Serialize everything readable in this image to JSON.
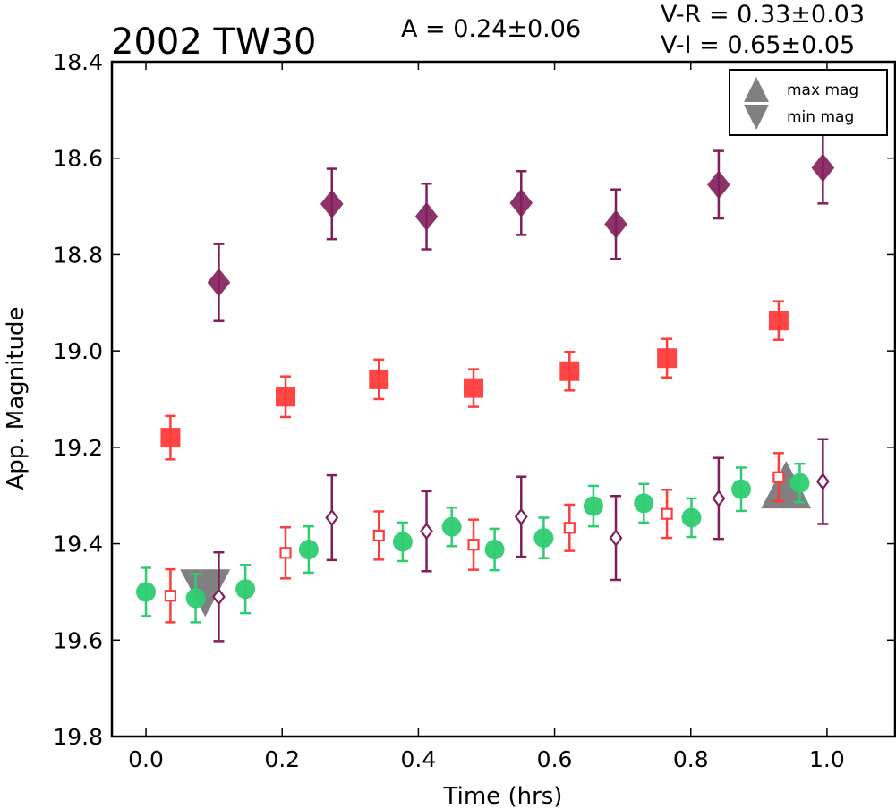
{
  "chart_data": {
    "type": "scatter",
    "title": "2002 TW30",
    "annotations": {
      "amplitude": "A  = 0.24±0.06",
      "v_r": "V-R = 0.33±0.03",
      "v_i": "V-I  = 0.65±0.05"
    },
    "xlabel": "Time (hrs)",
    "ylabel": "App. Magnitude",
    "xlim": [
      -0.05,
      1.1
    ],
    "ylim": [
      19.8,
      18.4
    ],
    "y_inverted": true,
    "xticks": [
      "0.0",
      "0.2",
      "0.4",
      "0.6",
      "0.8",
      "1.0"
    ],
    "yticks": [
      "18.4",
      "18.6",
      "18.8",
      "19.0",
      "19.2",
      "19.4",
      "19.6",
      "19.8"
    ],
    "legend": {
      "placement": "top-right",
      "entries": [
        {
          "label": "max mag",
          "marker": "triangle-up",
          "color": "#808080"
        },
        {
          "label": "min mag",
          "marker": "triangle-down",
          "color": "#808080"
        }
      ]
    },
    "series": [
      {
        "style": "filled-diamond",
        "color": "#7f1e5a",
        "points": [
          {
            "x": 0.107,
            "y": 18.858,
            "err": 0.08
          },
          {
            "x": 0.273,
            "y": 18.695,
            "err": 0.073
          },
          {
            "x": 0.412,
            "y": 18.721,
            "err": 0.068
          },
          {
            "x": 0.551,
            "y": 18.693,
            "err": 0.066
          },
          {
            "x": 0.69,
            "y": 18.737,
            "err": 0.072
          },
          {
            "x": 0.841,
            "y": 18.655,
            "err": 0.07
          },
          {
            "x": 0.994,
            "y": 18.62,
            "err": 0.074
          }
        ]
      },
      {
        "style": "filled-square",
        "color": "#ff3c3c",
        "points": [
          {
            "x": 0.036,
            "y": 19.18,
            "err": 0.045
          },
          {
            "x": 0.205,
            "y": 19.095,
            "err": 0.042
          },
          {
            "x": 0.342,
            "y": 19.059,
            "err": 0.041
          },
          {
            "x": 0.481,
            "y": 19.077,
            "err": 0.039
          },
          {
            "x": 0.622,
            "y": 19.042,
            "err": 0.04
          },
          {
            "x": 0.765,
            "y": 19.015,
            "err": 0.04
          },
          {
            "x": 0.929,
            "y": 18.937,
            "err": 0.04
          }
        ]
      },
      {
        "style": "filled-circle",
        "color": "#2ecc71",
        "points": [
          {
            "x": 0.0,
            "y": 19.5,
            "err": 0.05
          },
          {
            "x": 0.073,
            "y": 19.513,
            "err": 0.05
          },
          {
            "x": 0.146,
            "y": 19.494,
            "err": 0.05
          },
          {
            "x": 0.239,
            "y": 19.412,
            "err": 0.048
          },
          {
            "x": 0.377,
            "y": 19.396,
            "err": 0.04
          },
          {
            "x": 0.449,
            "y": 19.365,
            "err": 0.04
          },
          {
            "x": 0.512,
            "y": 19.412,
            "err": 0.043
          },
          {
            "x": 0.584,
            "y": 19.388,
            "err": 0.042
          },
          {
            "x": 0.657,
            "y": 19.322,
            "err": 0.042
          },
          {
            "x": 0.731,
            "y": 19.316,
            "err": 0.04
          },
          {
            "x": 0.801,
            "y": 19.346,
            "err": 0.04
          },
          {
            "x": 0.874,
            "y": 19.287,
            "err": 0.045
          },
          {
            "x": 0.96,
            "y": 19.274,
            "err": 0.04
          }
        ]
      },
      {
        "style": "open-square",
        "color": "#ff3c3c",
        "points": [
          {
            "x": 0.036,
            "y": 19.508,
            "err": 0.055
          },
          {
            "x": 0.205,
            "y": 19.419,
            "err": 0.053
          },
          {
            "x": 0.342,
            "y": 19.383,
            "err": 0.05
          },
          {
            "x": 0.481,
            "y": 19.402,
            "err": 0.052
          },
          {
            "x": 0.622,
            "y": 19.367,
            "err": 0.048
          },
          {
            "x": 0.765,
            "y": 19.338,
            "err": 0.05
          },
          {
            "x": 0.929,
            "y": 19.262,
            "err": 0.05
          }
        ]
      },
      {
        "style": "open-diamond",
        "color": "#7f1e5a",
        "points": [
          {
            "x": 0.107,
            "y": 19.51,
            "err": 0.092
          },
          {
            "x": 0.273,
            "y": 19.346,
            "err": 0.088
          },
          {
            "x": 0.412,
            "y": 19.374,
            "err": 0.083
          },
          {
            "x": 0.551,
            "y": 19.344,
            "err": 0.083
          },
          {
            "x": 0.69,
            "y": 19.388,
            "err": 0.087
          },
          {
            "x": 0.841,
            "y": 19.306,
            "err": 0.084
          },
          {
            "x": 0.994,
            "y": 19.271,
            "err": 0.088
          }
        ]
      }
    ],
    "markers": [
      {
        "label": "max mag",
        "x": 0.94,
        "y": 19.28,
        "marker": "triangle-up",
        "color": "#808080"
      },
      {
        "label": "min mag",
        "x": 0.087,
        "y": 19.5,
        "marker": "triangle-down",
        "color": "#808080"
      }
    ]
  }
}
